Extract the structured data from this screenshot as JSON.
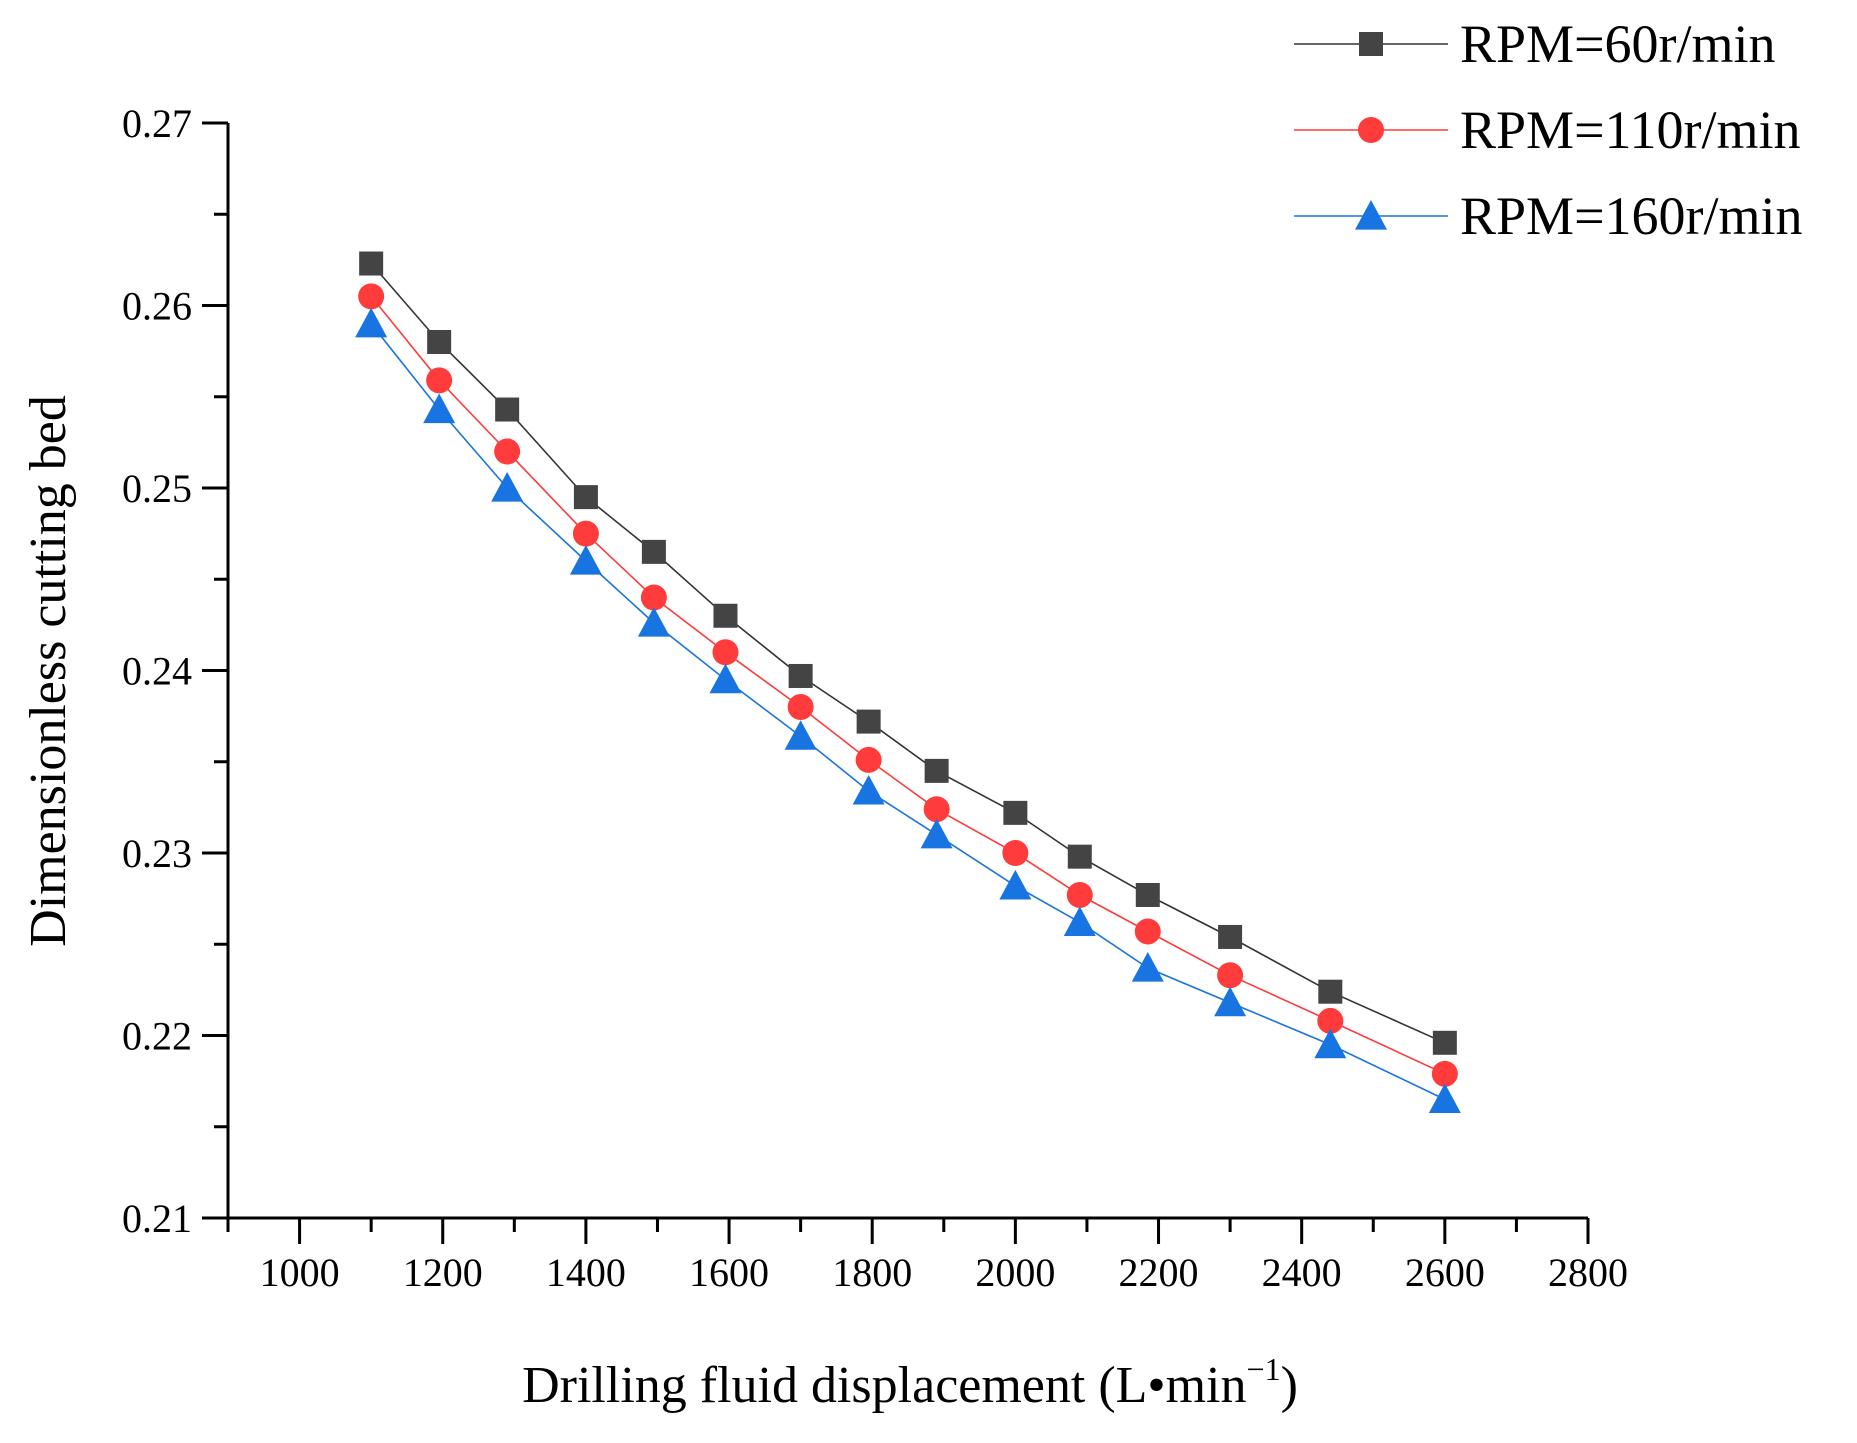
{
  "chart_data": {
    "type": "line",
    "title": "",
    "xlabel": "Drilling fluid displacement (L•min",
    "xlabel_superscript": "−1",
    "xlabel_suffix": ")",
    "ylabel": "Dimensionless cutting bed",
    "xlim": [
      900,
      2800
    ],
    "ylim": [
      0.21,
      0.27
    ],
    "xticks": [
      1000,
      1200,
      1400,
      1600,
      1800,
      2000,
      2200,
      2400,
      2600,
      2800
    ],
    "yticks": [
      0.21,
      0.22,
      0.23,
      0.24,
      0.25,
      0.26,
      0.27
    ],
    "xtick_labels": [
      "1000",
      "1200",
      "1400",
      "1600",
      "1800",
      "2000",
      "2200",
      "2400",
      "2600",
      "2800"
    ],
    "ytick_labels": [
      "0.21",
      "0.22",
      "0.23",
      "0.24",
      "0.25",
      "0.26",
      "0.27"
    ],
    "legend_position": "top-right",
    "grid": false,
    "x": [
      1100,
      1195,
      1290,
      1400,
      1495,
      1595,
      1700,
      1795,
      1890,
      2000,
      2090,
      2185,
      2300,
      2440,
      2600
    ],
    "series": [
      {
        "name": "RPM=60r/min",
        "marker": "square",
        "color": "#444444",
        "line_color": "#333333",
        "values": [
          0.2623,
          0.258,
          0.2543,
          0.2495,
          0.2465,
          0.243,
          0.2397,
          0.2372,
          0.2345,
          0.2322,
          0.2298,
          0.2277,
          0.2254,
          0.2224,
          0.2196
        ]
      },
      {
        "name": "RPM=110r/min",
        "marker": "circle",
        "color": "#ff3b3b",
        "line_color": "#ff3b3b",
        "values": [
          0.2605,
          0.2559,
          0.252,
          0.2475,
          0.244,
          0.241,
          0.238,
          0.2351,
          0.2324,
          0.23,
          0.2277,
          0.2257,
          0.2233,
          0.2208,
          0.2179
        ]
      },
      {
        "name": "RPM=160r/min",
        "marker": "triangle",
        "color": "#1874e0",
        "line_color": "#1874e0",
        "values": [
          0.259,
          0.2543,
          0.25,
          0.246,
          0.2426,
          0.2395,
          0.2364,
          0.2334,
          0.231,
          0.2282,
          0.2262,
          0.2237,
          0.2218,
          0.2195,
          0.2165
        ]
      }
    ]
  }
}
